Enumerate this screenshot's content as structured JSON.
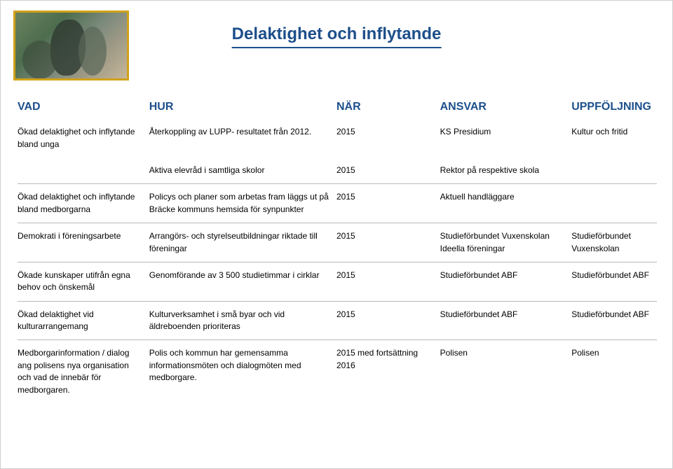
{
  "title": "Delaktighet och inflytande",
  "headers": {
    "vad": "VAD",
    "hur": "HUR",
    "nar": "NÄR",
    "ansvar": "ANSVAR",
    "upp": "UPPFÖLJNING"
  },
  "rows": {
    "r1a": {
      "vad": "Ökad delaktighet och inflytande bland unga",
      "hur": "Återkoppling av LUPP- resultatet från 2012.",
      "nar": "2015",
      "ansvar": "KS Presidium",
      "upp": "Kultur och fritid"
    },
    "r1b": {
      "vad": "",
      "hur": "Aktiva elevråd i samtliga skolor",
      "nar": "2015",
      "ansvar": "Rektor på respektive skola",
      "upp": ""
    },
    "r2": {
      "vad": "Ökad delaktighet och inflytande bland medborgarna",
      "hur": "Policys och planer som arbetas fram läggs ut på Bräcke kommuns hemsida för synpunkter",
      "nar": "2015",
      "ansvar": "Aktuell handläggare",
      "upp": ""
    },
    "r3": {
      "vad": "Demokrati i föreningsarbete",
      "hur": "Arrangörs- och styrelseutbildningar riktade till föreningar",
      "nar": "2015",
      "ansvar": "Studieförbundet Vuxenskolan\nIdeella föreningar",
      "upp": "Studieförbundet Vuxenskolan"
    },
    "r4": {
      "vad": "Ökade kunskaper utifrån egna behov och önskemål",
      "hur": "Genomförande av 3 500 studietimmar i cirklar",
      "nar": "2015",
      "ansvar": "Studieförbundet ABF",
      "upp": "Studieförbundet ABF"
    },
    "r5": {
      "vad": "Ökad delaktighet vid kulturarrangemang",
      "hur": "Kulturverksamhet i små byar och vid äldreboenden prioriteras",
      "nar": "2015",
      "ansvar": "Studieförbundet ABF",
      "upp": "Studieförbundet ABF"
    },
    "r6": {
      "vad": "Medborgarinformation / dialog ang polisens nya organisation och vad de innebär för medborgaren.",
      "hur": "Polis och kommun har gemensamma informationsmöten och dialogmöten med medborgare.",
      "nar": "2015 med fortsättning 2016",
      "ansvar": "Polisen",
      "upp": "Polisen"
    }
  }
}
